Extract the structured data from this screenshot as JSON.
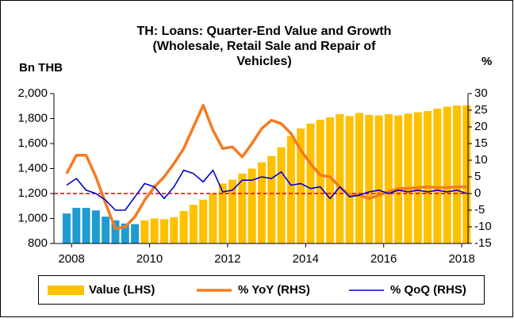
{
  "chart_data": {
    "type": "bar_line",
    "title": [
      "TH: Loans: Quarter-End Value and Growth",
      "(Wholesale, Retail Sale and Repair of",
      "Vehicles)"
    ],
    "y_axis_label": "Bn THB",
    "y2_axis_label": "%",
    "x": [
      2007.875,
      2008.125,
      2008.375,
      2008.625,
      2008.875,
      2009.125,
      2009.375,
      2009.625,
      2009.875,
      2010.125,
      2010.375,
      2010.625,
      2010.875,
      2011.125,
      2011.375,
      2011.625,
      2011.875,
      2012.125,
      2012.375,
      2012.625,
      2012.875,
      2013.125,
      2013.375,
      2013.625,
      2013.875,
      2014.125,
      2014.375,
      2014.625,
      2014.875,
      2015.125,
      2015.375,
      2015.625,
      2015.875,
      2016.125,
      2016.375,
      2016.625,
      2016.875,
      2017.125,
      2017.375,
      2017.625,
      2017.875,
      2018.125
    ],
    "series": [
      {
        "name": "Value (LHS)",
        "kind": "bar",
        "color": "#ffc000",
        "colors": [
          "#1f9bd0",
          "#1f9bd0",
          "#1f9bd0",
          "#1f9bd0",
          "#1f9bd0",
          "#1f9bd0",
          "#1f9bd0",
          "#1f9bd0",
          "#ffc000",
          "#ffc000",
          "#ffc000",
          "#ffc000",
          "#ffc000",
          "#ffc000",
          "#ffc000",
          "#ffc000",
          "#ffc000",
          "#ffc000",
          "#ffc000",
          "#ffc000",
          "#ffc000",
          "#ffc000",
          "#ffc000",
          "#ffc000",
          "#ffc000",
          "#ffc000",
          "#ffc000",
          "#ffc000",
          "#ffc000",
          "#ffc000",
          "#ffc000",
          "#ffc000",
          "#ffc000",
          "#ffc000",
          "#ffc000",
          "#ffc000",
          "#ffc000",
          "#ffc000",
          "#ffc000",
          "#ffc000",
          "#ffc000",
          "#ffc000"
        ],
        "values": [
          1040,
          1085,
          1085,
          1065,
          1015,
          985,
          960,
          955,
          985,
          1000,
          995,
          1010,
          1060,
          1110,
          1150,
          1200,
          1280,
          1310,
          1360,
          1400,
          1450,
          1500,
          1570,
          1660,
          1720,
          1760,
          1790,
          1810,
          1835,
          1820,
          1845,
          1830,
          1825,
          1835,
          1825,
          1840,
          1850,
          1860,
          1880,
          1895,
          1905,
          1905
        ]
      },
      {
        "name": "% YoY (RHS)",
        "kind": "line",
        "axis": "y2",
        "color": "#f47b20",
        "width": 3.5,
        "values": [
          6,
          11.5,
          11.5,
          5,
          -3,
          -10.5,
          -10,
          -7,
          -2,
          2,
          5,
          9,
          13.5,
          20,
          26.5,
          19,
          13.5,
          14,
          11,
          15,
          19.5,
          22,
          21,
          18,
          13,
          9,
          5.5,
          5,
          2,
          -0.5,
          -0.5,
          -1.5,
          -0.5,
          0.5,
          1.5,
          1.5,
          1.8,
          2,
          1.8,
          1.8,
          2,
          2
        ]
      },
      {
        "name": "% QoQ (RHS)",
        "kind": "line",
        "axis": "y2",
        "color": "#0000cc",
        "width": 1.6,
        "values": [
          2.5,
          4.5,
          1,
          0,
          -2,
          -5,
          -5,
          -1,
          3,
          2,
          -1.5,
          2,
          7,
          6,
          3.5,
          7,
          0.5,
          1,
          4,
          4,
          5,
          4.5,
          6.5,
          2.5,
          3,
          1.5,
          2,
          -1.5,
          2,
          -1,
          -0.5,
          0.5,
          1,
          0,
          1,
          0.5,
          1,
          0.5,
          1,
          0.5,
          1,
          0
        ]
      }
    ],
    "xlim": [
      2007.55,
      2018.16
    ],
    "xticks": [
      2008,
      2010,
      2012,
      2014,
      2016,
      2018
    ],
    "ylim": [
      800,
      2000
    ],
    "yticks": [
      {
        "value": 800,
        "label": "800"
      },
      {
        "value": 1000,
        "label": "1,000"
      },
      {
        "value": 1200,
        "label": "1,200"
      },
      {
        "value": 1400,
        "label": "1,400"
      },
      {
        "value": 1600,
        "label": "1,600"
      },
      {
        "value": 1800,
        "label": "1,800"
      },
      {
        "value": 2000,
        "label": "2,000"
      }
    ],
    "y2lim": [
      -15,
      30
    ],
    "y2ticks": [
      -15,
      -10,
      -5,
      0,
      5,
      10,
      15,
      20,
      25,
      30
    ],
    "reference_line": {
      "value": 0,
      "axis": "y2",
      "color": "#e00000"
    },
    "legend": "bottom"
  }
}
